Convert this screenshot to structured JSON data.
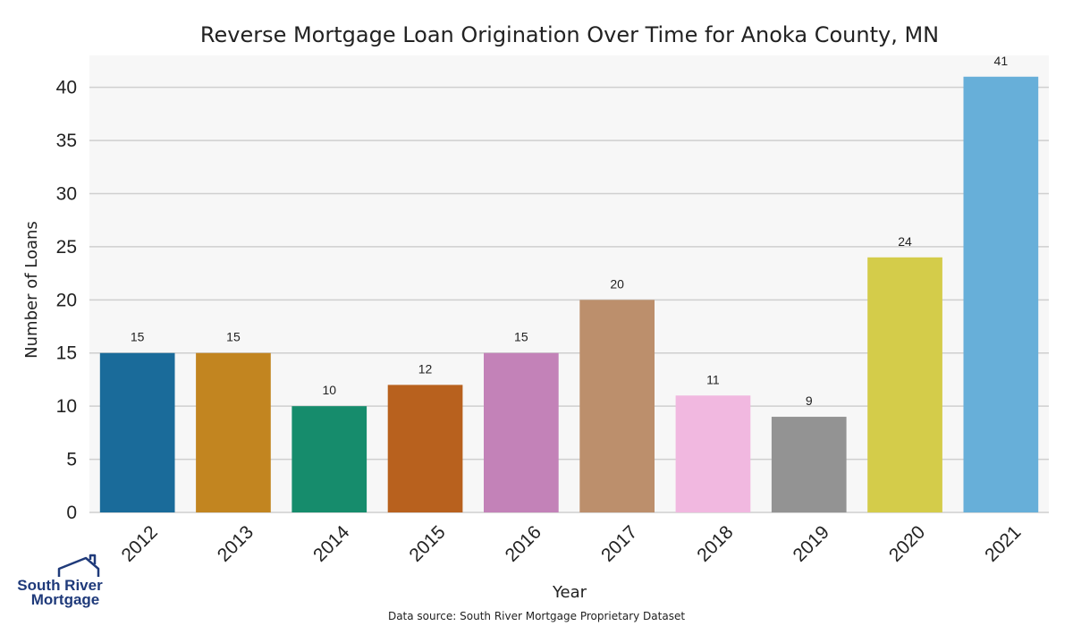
{
  "chart_data": {
    "type": "bar",
    "title": "Reverse Mortgage Loan Origination Over Time for Anoka County, MN",
    "xlabel": "Year",
    "ylabel": "Number of Loans",
    "categories": [
      "2012",
      "2013",
      "2014",
      "2015",
      "2016",
      "2017",
      "2018",
      "2019",
      "2020",
      "2021"
    ],
    "values": [
      15,
      15,
      10,
      12,
      15,
      20,
      11,
      9,
      24,
      41
    ],
    "colors": [
      "#1a6b9a",
      "#c28520",
      "#168c6c",
      "#b8611e",
      "#c382b8",
      "#bc8f6c",
      "#f1b8e0",
      "#939393",
      "#d4cc4a",
      "#67afd9"
    ],
    "ylim": [
      0,
      43
    ],
    "yticks": [
      0,
      5,
      10,
      15,
      20,
      25,
      30,
      35,
      40
    ],
    "grid": "horizontal",
    "legend": "none",
    "data_labels": true
  },
  "source_note": "Data source: South River Mortgage Proprietary Dataset",
  "logo": {
    "line1": "South River",
    "line2": "Mortgage",
    "icon": "house-icon",
    "color": "#1f3a7a"
  }
}
